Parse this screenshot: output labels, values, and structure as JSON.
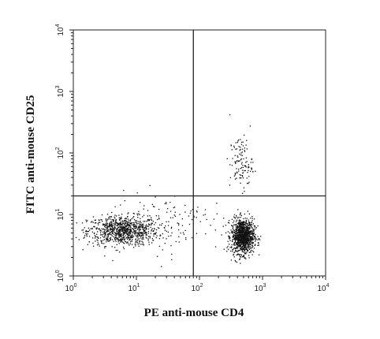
{
  "chart_data": {
    "type": "scatter",
    "title": "",
    "xlabel": "PE anti-mouse CD4",
    "ylabel": "FITC anti-mouse CD25",
    "xscale": "log",
    "yscale": "log",
    "xlim": [
      1,
      10000
    ],
    "ylim": [
      1,
      10000
    ],
    "grid": false,
    "xticks": [
      {
        "base": "10",
        "exp": "0"
      },
      {
        "base": "10",
        "exp": "1"
      },
      {
        "base": "10",
        "exp": "2"
      },
      {
        "base": "10",
        "exp": "3"
      },
      {
        "base": "10",
        "exp": "4"
      }
    ],
    "yticks": [
      {
        "base": "10",
        "exp": "0"
      },
      {
        "base": "10",
        "exp": "1"
      },
      {
        "base": "10",
        "exp": "2"
      },
      {
        "base": "10",
        "exp": "3"
      },
      {
        "base": "10",
        "exp": "4"
      }
    ],
    "quadrant_gates": {
      "x": 80,
      "y": 20
    },
    "point_color": "#111111",
    "populations": [
      {
        "center_x": 6,
        "center_y": 5.5,
        "spread_x_decades": 0.28,
        "spread_y_decades": 0.12,
        "count": 900
      },
      {
        "center_x": 480,
        "center_y": 4.5,
        "spread_x_decades": 0.09,
        "spread_y_decades": 0.14,
        "count": 1100
      },
      {
        "center_x": 450,
        "center_y": 70,
        "spread_x_decades": 0.09,
        "spread_y_decades": 0.22,
        "count": 120
      },
      {
        "center_x": 30,
        "center_y": 8,
        "spread_x_decades": 0.45,
        "spread_y_decades": 0.25,
        "count": 120
      }
    ]
  }
}
